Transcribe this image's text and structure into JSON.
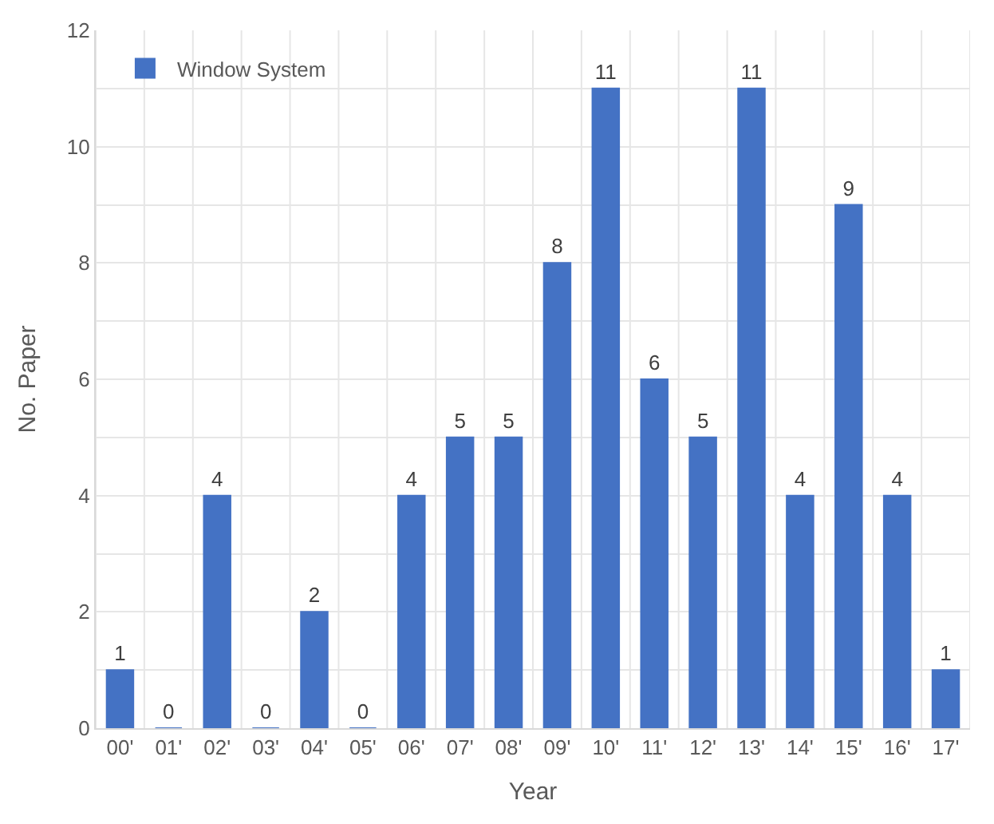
{
  "chart_data": {
    "type": "bar",
    "xlabel": "Year",
    "ylabel": "No. Paper",
    "categories": [
      "00'",
      "01'",
      "02'",
      "03'",
      "04'",
      "05'",
      "06'",
      "07'",
      "08'",
      "09'",
      "10'",
      "11'",
      "12'",
      "13'",
      "14'",
      "15'",
      "16'",
      "17'"
    ],
    "series": [
      {
        "name": "Window System",
        "color": "#4472c4",
        "values": [
          1,
          0,
          4,
          0,
          2,
          0,
          4,
          5,
          5,
          8,
          11,
          6,
          5,
          11,
          4,
          9,
          4,
          1
        ]
      }
    ],
    "ylim": [
      0,
      12
    ],
    "yticks": [
      0,
      {
        "value": 1,
        "label": null
      },
      2,
      {
        "value": 3,
        "label": null
      },
      4,
      {
        "value": 5,
        "label": null
      },
      6,
      {
        "value": 7,
        "label": null
      },
      8,
      {
        "value": 9,
        "label": null
      },
      10,
      {
        "value": 11,
        "label": null
      },
      12
    ],
    "grid": true,
    "legend": "top left",
    "data_labels": true
  }
}
